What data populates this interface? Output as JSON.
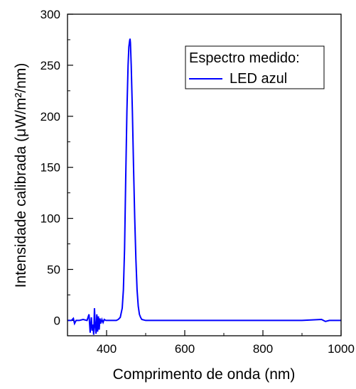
{
  "chart_data": {
    "type": "line",
    "xlabel": "Comprimento de onda (nm)",
    "ylabel": "Intensidade calibrada (μW/m²/nm)",
    "xlim": [
      300,
      1000
    ],
    "ylim": [
      -15,
      300
    ],
    "xticks": [
      400,
      600,
      800,
      1000
    ],
    "yticks": [
      0,
      50,
      100,
      150,
      200,
      250,
      300
    ],
    "xtick_labels": [
      "400",
      "600",
      "800",
      "1000"
    ],
    "ytick_labels": [
      "0",
      "50",
      "100",
      "150",
      "200",
      "250",
      "300"
    ],
    "legend": {
      "title": "Espectro medido:",
      "placement": "top-right"
    },
    "grid": false,
    "series": [
      {
        "name": "LED azul",
        "color": "#0000ff",
        "x": [
          300,
          310,
          315,
          318,
          322,
          330,
          340,
          350,
          355,
          358,
          361,
          363,
          365,
          367,
          369,
          371,
          373,
          375,
          377,
          379,
          381,
          383,
          385,
          388,
          391,
          394,
          398,
          405,
          415,
          425,
          430,
          435,
          440,
          443,
          446,
          449,
          452,
          455,
          457,
          459,
          460,
          461,
          463,
          466,
          469,
          472,
          475,
          478,
          481,
          484,
          487,
          490,
          495,
          500,
          505,
          510,
          520,
          550,
          600,
          700,
          800,
          900,
          950,
          960,
          970,
          1000
        ],
        "y": [
          0,
          0,
          2,
          -3,
          0,
          0,
          1,
          0,
          6,
          -12,
          3,
          -10,
          -4,
          -14,
          12,
          -6,
          -13,
          6,
          -11,
          4,
          -9,
          2,
          -3,
          1,
          -2,
          1,
          0,
          0,
          0,
          0,
          1,
          3,
          12,
          30,
          70,
          140,
          205,
          250,
          268,
          274,
          276,
          272,
          250,
          205,
          150,
          100,
          60,
          30,
          14,
          6,
          3,
          1,
          0.5,
          0,
          0,
          0,
          0,
          0,
          0,
          0,
          0,
          0,
          1,
          -1,
          0,
          0
        ]
      }
    ]
  }
}
